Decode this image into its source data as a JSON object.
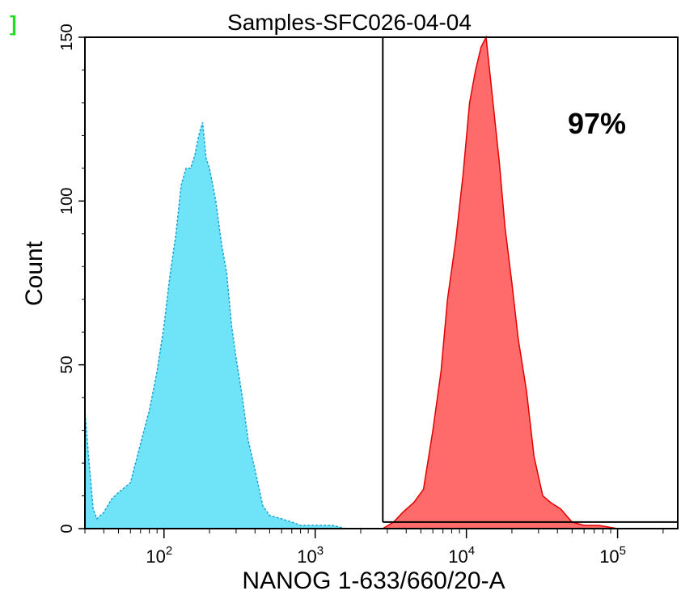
{
  "corner_mark": "]",
  "chart_data": {
    "type": "area",
    "title": "Samples-SFC026-04-04",
    "xlabel": "NANOG 1-633/660/20-A",
    "ylabel": "Count",
    "x_scale": "log",
    "xlim": [
      30,
      250000
    ],
    "ylim": [
      0,
      150
    ],
    "y_ticks": [
      0,
      50,
      100,
      150
    ],
    "x_ticks": [
      {
        "value": 100,
        "base": "10",
        "exp": "2"
      },
      {
        "value": 1000,
        "base": "10",
        "exp": "3"
      },
      {
        "value": 10000,
        "base": "10",
        "exp": "4"
      },
      {
        "value": 100000,
        "base": "10",
        "exp": "5"
      }
    ],
    "gate": {
      "x_min": 2800,
      "x_max": 250000,
      "count": 2,
      "label": "97%"
    },
    "grid": false,
    "legend": "none",
    "series": [
      {
        "color": "#6fe3f7",
        "edge_color": "#1aa5d4",
        "x": [
          30,
          32,
          34,
          36,
          40,
          45,
          50,
          60,
          70,
          80,
          90,
          100,
          110,
          120,
          130,
          140,
          150,
          160,
          170,
          180,
          190,
          200,
          220,
          240,
          260,
          280,
          300,
          330,
          360,
          400,
          450,
          500,
          600,
          700,
          800,
          1000,
          1300,
          1600,
          2000
        ],
        "y": [
          36,
          20,
          6,
          3,
          5,
          9,
          11,
          14,
          26,
          36,
          48,
          62,
          78,
          90,
          105,
          110,
          110,
          114,
          120,
          124,
          113,
          110,
          100,
          87,
          78,
          62,
          52,
          40,
          27,
          18,
          7,
          4,
          3,
          2,
          1,
          1,
          1,
          0,
          0
        ]
      },
      {
        "color": "#ff6b6b",
        "edge_color": "#e00000",
        "x": [
          2800,
          3300,
          3800,
          4500,
          5200,
          6000,
          6800,
          7500,
          8500,
          9500,
          10500,
          11500,
          12500,
          13500,
          15000,
          16500,
          18000,
          20000,
          22000,
          25000,
          28000,
          32000,
          36000,
          42000,
          50000,
          60000,
          75000,
          100000,
          150000,
          250000
        ],
        "y": [
          0,
          2,
          5,
          8,
          12,
          30,
          48,
          70,
          88,
          108,
          130,
          140,
          147,
          150,
          130,
          112,
          92,
          75,
          58,
          42,
          22,
          10,
          8,
          6,
          2,
          1,
          1,
          0,
          0,
          0
        ]
      }
    ]
  }
}
